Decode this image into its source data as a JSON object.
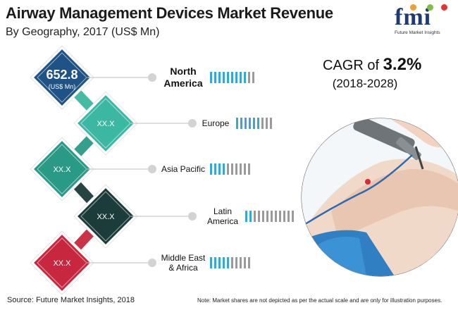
{
  "header": {
    "title": "Airway Management Devices Market Revenue",
    "subtitle": "By Geography, 2017 (US$ Mn)"
  },
  "logo": {
    "word": "fmi",
    "tagline": "Future Market Insights"
  },
  "cagr": {
    "prefix": "CAGR of ",
    "value": "3.2%",
    "period": "(2018-2028)"
  },
  "footer": {
    "source": "Source: Future Market Insights, 2018",
    "note": "Note: Market shares are not depicted as per the actual scale and are only for illustration purposes."
  },
  "colors": {
    "north_america": "#1f5285",
    "europe": "#3cb8a2",
    "asia_pacific": "#2a9a86",
    "latin_america": "#1c3b3b",
    "middle_east_africa": "#c8283f",
    "bar_filled": "#38a7d8",
    "bar_empty": "#9a9a9a"
  },
  "chart_data": {
    "type": "table",
    "title": "Airway Management Devices Market Revenue",
    "subtitle": "By Geography, 2017 (US$ Mn)",
    "categories": [
      "North America",
      "Europe",
      "Asia Pacific",
      "Latin America",
      "Middle East & Africa"
    ],
    "values": [
      "652.8",
      "XX.X",
      "XX.X",
      "XX.X",
      "XX.X"
    ],
    "unit": "(US$ Mn)",
    "share_bars": [
      {
        "filled": 9,
        "total": 11
      },
      {
        "filled": 6,
        "total": 9
      },
      {
        "filled": 4,
        "total": 10
      },
      {
        "filled": 2,
        "total": 12
      },
      {
        "filled": 5,
        "total": 10
      }
    ],
    "regions": [
      {
        "name": "North America",
        "label_lines": [
          "North",
          "America"
        ],
        "value": "652.8",
        "unit": "(US$ Mn)",
        "color": "#1f5285",
        "bold": true
      },
      {
        "name": "Europe",
        "label_lines": [
          "Europe"
        ],
        "value": "XX.X",
        "unit": "",
        "color": "#3cb8a2",
        "bold": false
      },
      {
        "name": "Asia Pacific",
        "label_lines": [
          "Asia Pacific"
        ],
        "value": "XX.X",
        "unit": "",
        "color": "#2a9a86",
        "bold": false
      },
      {
        "name": "Latin America",
        "label_lines": [
          "Latin",
          "America"
        ],
        "value": "XX.X",
        "unit": "",
        "color": "#1c3b3b",
        "bold": false
      },
      {
        "name": "Middle East & Africa",
        "label_lines": [
          "Middle East",
          "& Africa"
        ],
        "value": "XX.X",
        "unit": "",
        "color": "#c8283f",
        "bold": false
      }
    ]
  }
}
